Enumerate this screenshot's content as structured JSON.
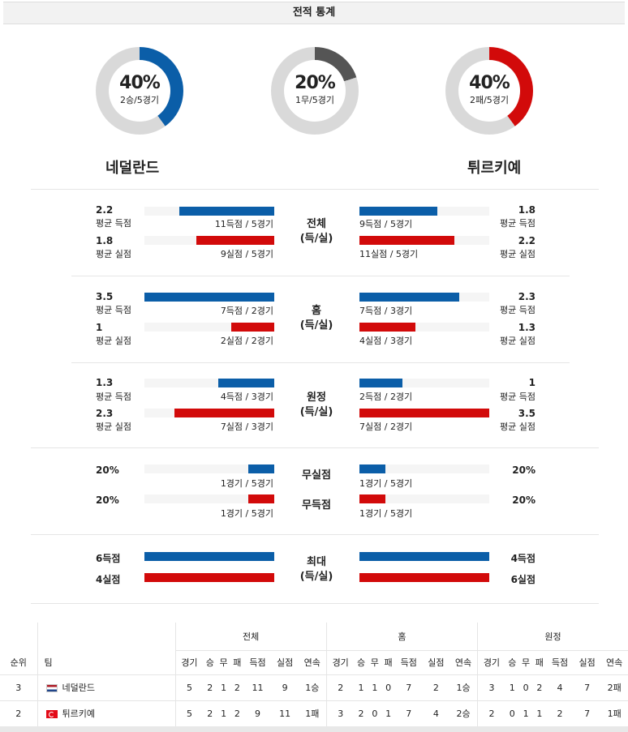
{
  "header": {
    "title": "전적 통계"
  },
  "donuts": [
    {
      "pct": "40%",
      "sub": "2승/5경기",
      "color": "#0b5ea8",
      "fraction": 0.4
    },
    {
      "pct": "20%",
      "sub": "1무/5경기",
      "color": "#555555",
      "fraction": 0.2
    },
    {
      "pct": "40%",
      "sub": "2패/5경기",
      "color": "#d20a0a",
      "fraction": 0.4
    }
  ],
  "teams": {
    "home": "네덜란드",
    "away": "튀르키예"
  },
  "sections": {
    "total": {
      "label": "전체\n(득/실)",
      "label1": "전체",
      "label2": "(득/실)",
      "home_scored_val": "2.2",
      "home_scored_lbl": "평균 득점",
      "home_scored_cap": "11득점 / 5경기",
      "home_conceded_val": "1.8",
      "home_conceded_lbl": "평균 실점",
      "home_conceded_cap": "9실점 / 5경기",
      "away_scored_val": "1.8",
      "away_scored_lbl": "평균 득점",
      "away_scored_cap": "9득점 / 5경기",
      "away_conceded_val": "2.2",
      "away_conceded_lbl": "평균 실점",
      "away_conceded_cap": "11실점 / 5경기"
    },
    "home": {
      "label1": "홈",
      "label2": "(득/실)",
      "home_scored_val": "3.5",
      "home_scored_lbl": "평균 득점",
      "home_scored_cap": "7득점 / 2경기",
      "home_conceded_val": "1",
      "home_conceded_lbl": "평균 실점",
      "home_conceded_cap": "2실점 / 2경기",
      "away_scored_val": "2.3",
      "away_scored_lbl": "평균 득점",
      "away_scored_cap": "7득점 / 3경기",
      "away_conceded_val": "1.3",
      "away_conceded_lbl": "평균 실점",
      "away_conceded_cap": "4실점 / 3경기"
    },
    "away": {
      "label1": "원정",
      "label2": "(득/실)",
      "home_scored_val": "1.3",
      "home_scored_lbl": "평균 득점",
      "home_scored_cap": "4득점 / 3경기",
      "home_conceded_val": "2.3",
      "home_conceded_lbl": "평균 실점",
      "home_conceded_cap": "7실점 / 3경기",
      "away_scored_val": "1",
      "away_scored_lbl": "평균 득점",
      "away_scored_cap": "2득점 / 2경기",
      "away_conceded_val": "3.5",
      "away_conceded_lbl": "평균 실점",
      "away_conceded_cap": "7실점 / 2경기"
    },
    "clean": {
      "label_cs": "무실점",
      "label_fs": "무득점",
      "home_cs_val": "20%",
      "home_cs_cap": "1경기 / 5경기",
      "home_fs_val": "20%",
      "home_fs_cap": "1경기 / 5경기",
      "away_cs_val": "20%",
      "away_cs_cap": "1경기 / 5경기",
      "away_fs_val": "20%",
      "away_fs_cap": "1경기 / 5경기"
    },
    "max": {
      "label1": "최대",
      "label2": "(득/실)",
      "home_scored": "6득점",
      "home_conceded": "4실점",
      "away_scored": "4득점",
      "away_conceded": "6실점"
    }
  },
  "table": {
    "groups": [
      "전체",
      "홈",
      "원정"
    ],
    "col_rank": "순위",
    "col_team": "팀",
    "sub_cols": [
      "경기",
      "승",
      "무",
      "패",
      "득점",
      "실점",
      "연속"
    ],
    "rows": [
      {
        "rank": "3",
        "team": "네덜란드",
        "flag": "nl",
        "total": [
          "5",
          "2",
          "1",
          "2",
          "11",
          "9",
          "1승"
        ],
        "home": [
          "2",
          "1",
          "1",
          "0",
          "7",
          "2",
          "1승"
        ],
        "away": [
          "3",
          "1",
          "0",
          "2",
          "4",
          "7",
          "2패"
        ]
      },
      {
        "rank": "2",
        "team": "튀르키예",
        "flag": "tr",
        "total": [
          "5",
          "2",
          "1",
          "2",
          "9",
          "11",
          "1패"
        ],
        "home": [
          "3",
          "2",
          "0",
          "1",
          "7",
          "4",
          "2승"
        ],
        "away": [
          "2",
          "0",
          "1",
          "1",
          "2",
          "7",
          "1패"
        ]
      }
    ]
  },
  "bars": {
    "total": {
      "hs": 0.73,
      "hc": 0.6,
      "as": 0.6,
      "ac": 0.73
    },
    "home": {
      "hs": 1.0,
      "hc": 0.33,
      "as": 0.77,
      "ac": 0.43
    },
    "away": {
      "hs": 0.43,
      "hc": 0.77,
      "as": 0.33,
      "ac": 1.0
    },
    "clean": {
      "hcs": 0.2,
      "hfs": 0.2,
      "acs": 0.2,
      "afs": 0.2
    },
    "max": {
      "hs": 1.0,
      "hc": 1.0,
      "as": 1.0,
      "ac": 1.0
    }
  }
}
